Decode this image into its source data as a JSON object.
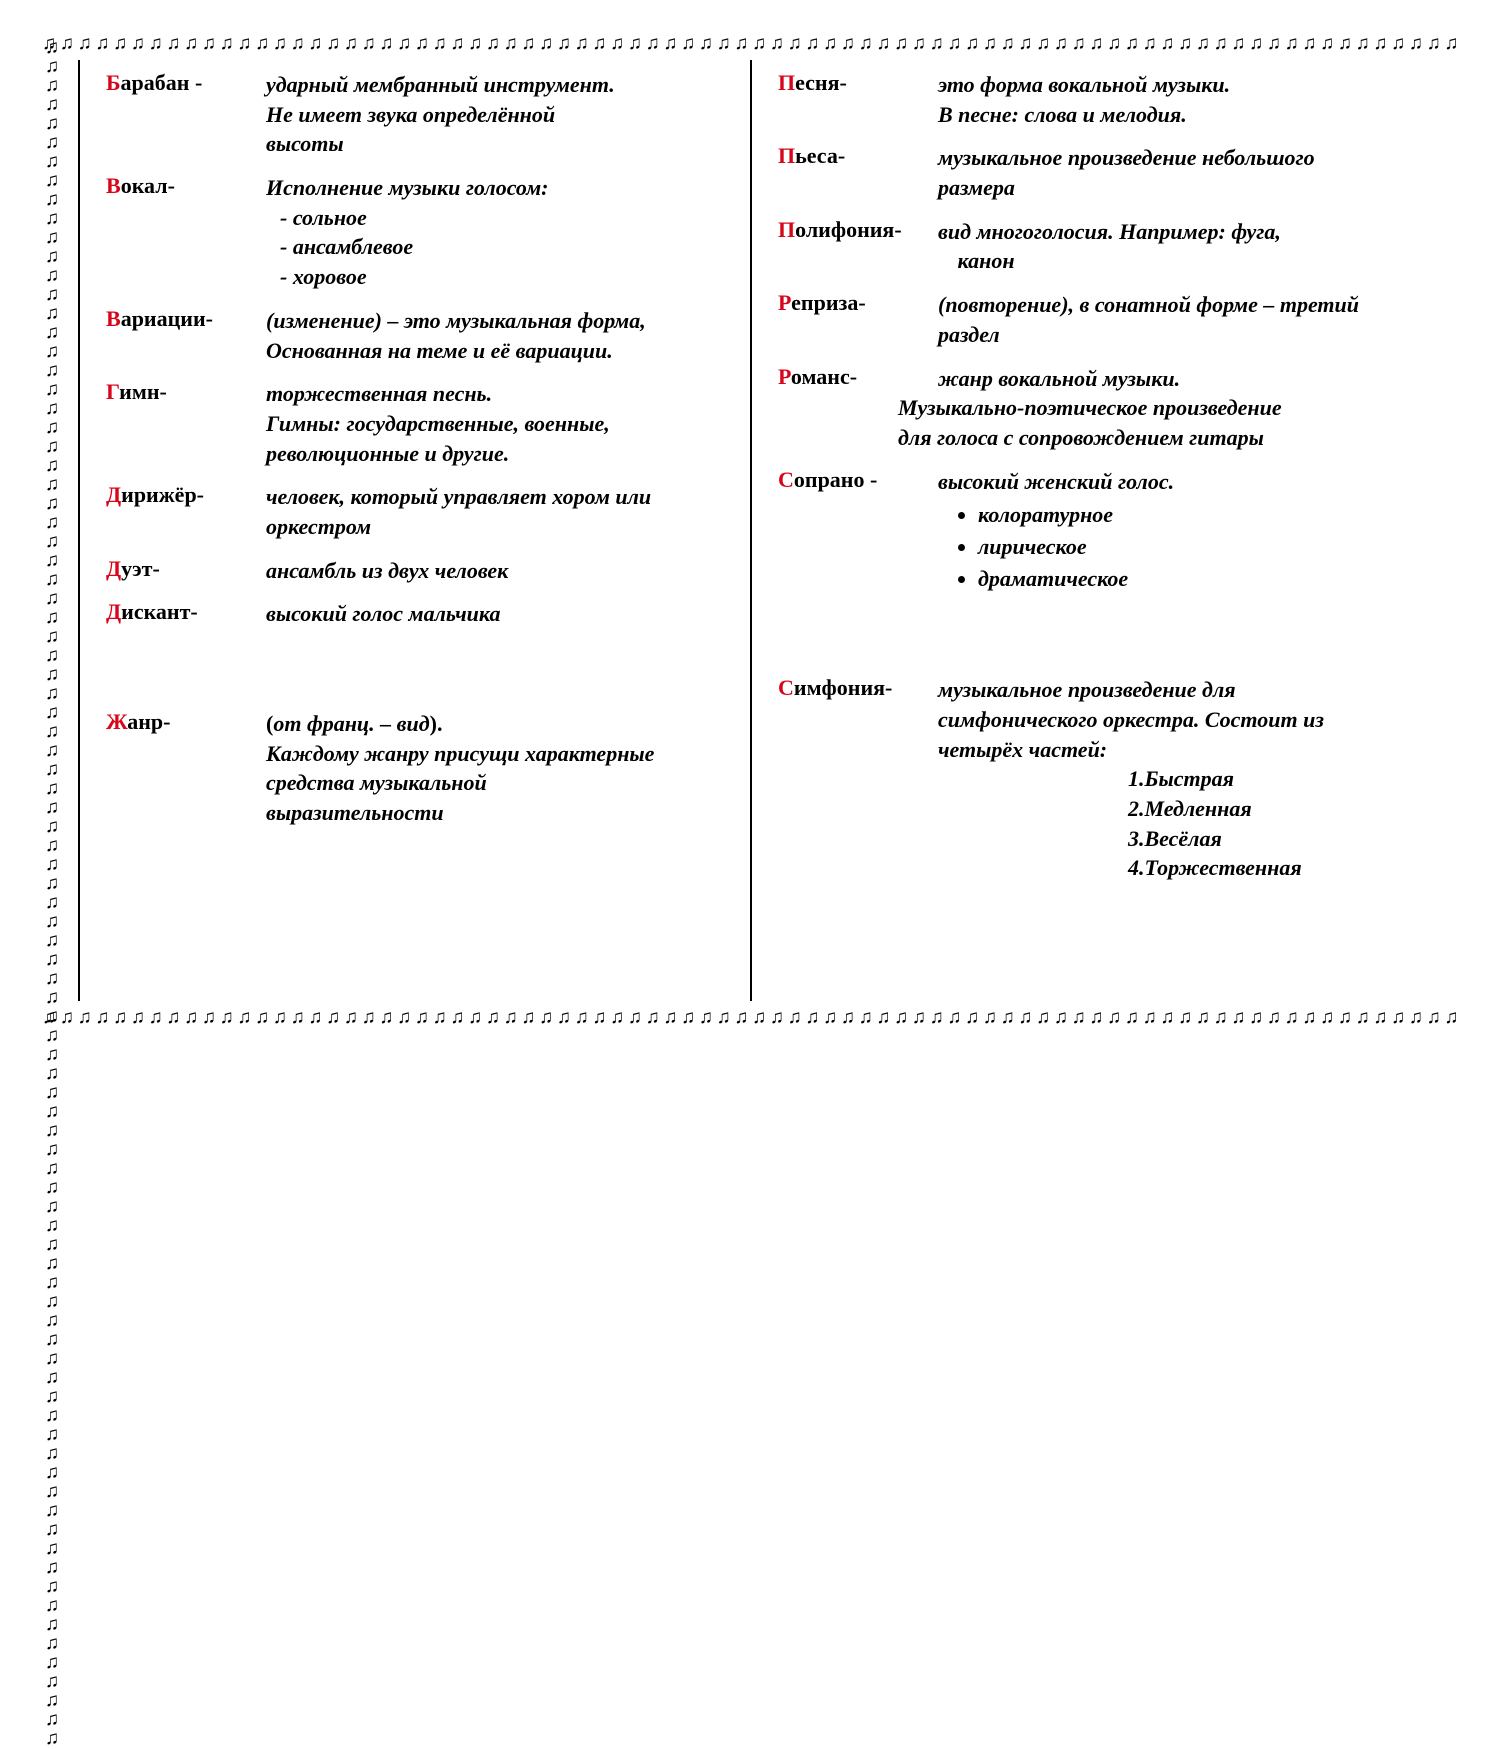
{
  "border_glyph": "♫",
  "colors": {
    "accent": "#d7061b",
    "text": "#000000",
    "background": "#ffffff"
  },
  "left": [
    {
      "first": "Б",
      "rest": "арабан -",
      "def": "ударный мембранный инструмент.",
      "cont": [
        "Не имеет звука определённой",
        "высоты"
      ]
    },
    {
      "first": "В",
      "rest": "окал-",
      "def": "Исполнение музыки голосом:",
      "subs": [
        "- сольное",
        "- ансамблевое",
        "- хоровое"
      ]
    },
    {
      "first": "В",
      "rest": "ариации-",
      "def": "(изменение) – это музыкальная форма,",
      "cont": [
        "Основанная  на теме и её вариации."
      ]
    },
    {
      "first": "Г",
      "rest": "имн-",
      "def": "торжественная песнь.",
      "cont": [
        "Гимны: государственные,  военные,",
        "революционные и другие."
      ]
    },
    {
      "first": "Д",
      "rest": "ирижёр-",
      "def": "человек, который управляет хором или",
      "cont": [
        "оркестром"
      ]
    },
    {
      "first": "Д",
      "rest": "уэт-",
      "def": "ансамбль из двух человек"
    },
    {
      "first": "Д",
      "rest": "искант-",
      "def": "высокий голос мальчика"
    },
    {
      "first": "Ж",
      "rest": "анр-",
      "gap": "xl",
      "def_prefix": "(",
      "def_italic": "от франц. – вид",
      "def_suffix": ").",
      "cont": [
        "Каждому  жанру  присущи  характерные",
        "средства  музыкальной",
        "выразительности"
      ]
    }
  ],
  "right": [
    {
      "first": "П",
      "rest": "есня-",
      "def": "это форма вокальной музыки.",
      "cont": [
        "В песне:   слова  и  мелодия."
      ]
    },
    {
      "first": "П",
      "rest": "ьеса-",
      "def": "музыкальное произведение небольшого",
      "cont": [
        "размера"
      ]
    },
    {
      "first": "П",
      "rest": "олифония-",
      "def": "вид многоголосия.  Например:  фуга,",
      "cont_indent": [
        "канон"
      ]
    },
    {
      "first": "Р",
      "rest": "еприза-",
      "def": "(повторение), в сонатной форме – третий",
      "cont": [
        "раздел"
      ]
    },
    {
      "first": "Р",
      "rest": "оманс-",
      "def": "жанр вокальной  музыки.",
      "cont_noindent": [
        "Музыкально-поэтическое  произведение",
        "для  голоса  с сопровождением  гитары"
      ]
    },
    {
      "first": "С",
      "rest": "опрано -",
      "def": "высокий женский голос.",
      "bullets": [
        "колоратурное",
        "лирическое",
        "драматическое"
      ]
    },
    {
      "first": "С",
      "rest": "имфония-",
      "gap": "xl",
      "def": "музыкальное произведение  для",
      "cont": [
        "симфонического оркестра. Состоит   из",
        "четырёх  частей:"
      ],
      "numbered": [
        "1.Быстрая",
        "2.Медленная",
        "3.Весёлая",
        "4.Торжественная"
      ]
    }
  ]
}
